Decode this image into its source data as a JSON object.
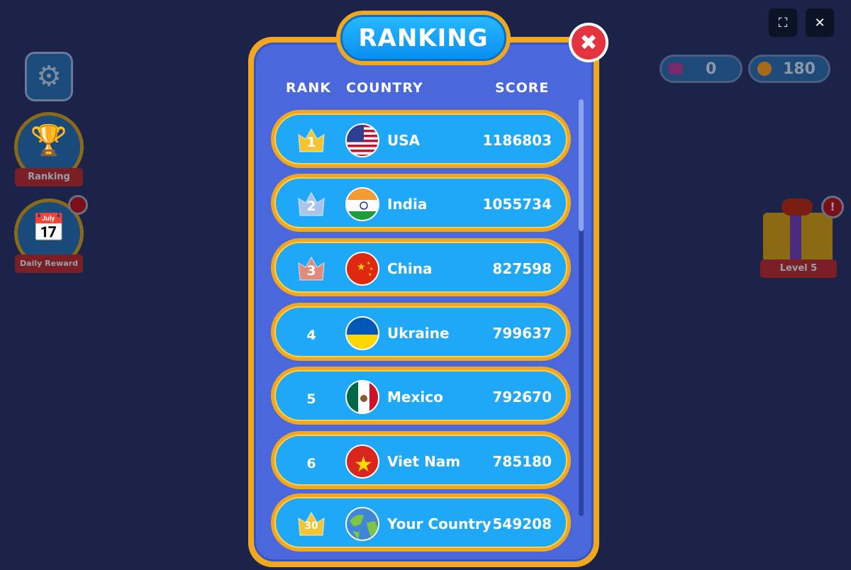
{
  "window": {
    "fullscreen_icon": "fullscreen-icon",
    "close_icon": "close-icon"
  },
  "currency": {
    "gems": "0",
    "coins": "180"
  },
  "side": {
    "ranking_label": "Ranking",
    "daily_label": "Daily Reward",
    "gift_label": "Level 5"
  },
  "panel": {
    "title": "RANKING",
    "headers": {
      "rank": "RANK",
      "country": "COUNTRY",
      "score": "SCORE"
    },
    "rows": [
      {
        "rank": "1",
        "country": "USA",
        "score": "1186803",
        "crown": "#f6c430"
      },
      {
        "rank": "2",
        "country": "India",
        "score": "1055734",
        "crown": "#a9c3ea"
      },
      {
        "rank": "3",
        "country": "China",
        "score": "827598",
        "crown": "#e08a7a"
      },
      {
        "rank": "4",
        "country": "Ukraine",
        "score": "799637"
      },
      {
        "rank": "5",
        "country": "Mexico",
        "score": "792670"
      },
      {
        "rank": "6",
        "country": "Viet Nam",
        "score": "785180"
      }
    ],
    "own": {
      "rank": "30",
      "country": "Your Country",
      "score": "549208",
      "crown": "#f6c430"
    }
  },
  "colors": {
    "accent": "#f1a81e",
    "row": "#1fa8f7",
    "panel": "#4a68dc",
    "close": "#e4333f"
  }
}
